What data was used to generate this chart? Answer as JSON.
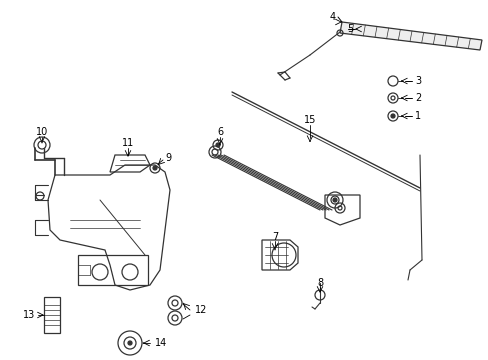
{
  "bg_color": "#ffffff",
  "fig_width": 4.89,
  "fig_height": 3.6,
  "dpi": 100,
  "line_color": "#333333",
  "line_width": 0.9,
  "font_size": 7
}
